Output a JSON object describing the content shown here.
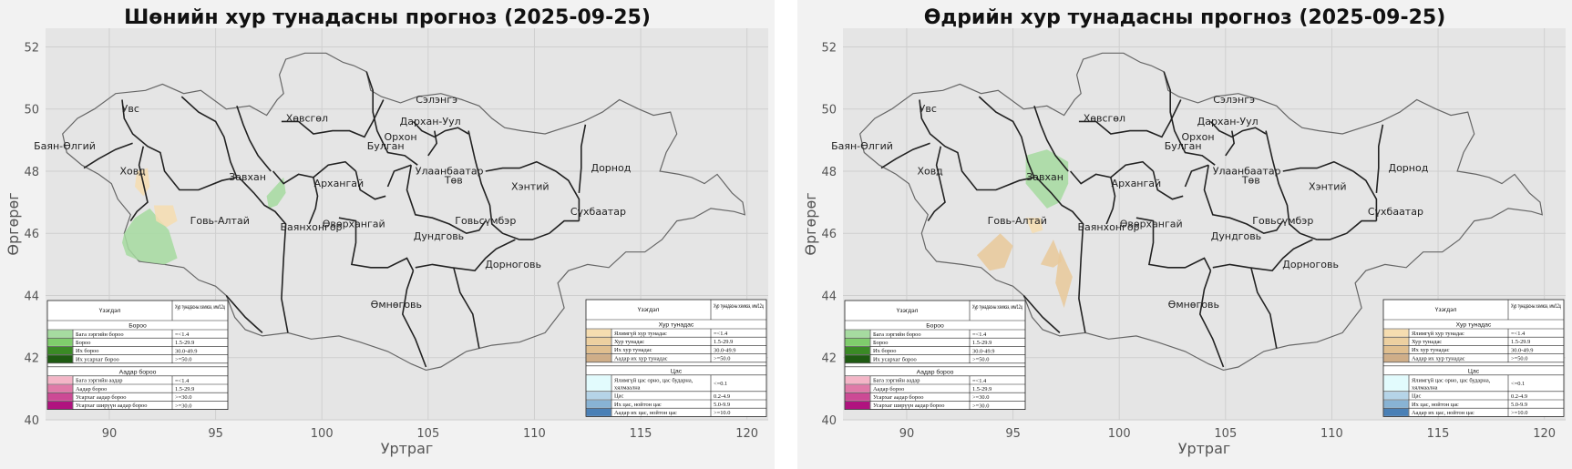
{
  "x_axis": {
    "label": "Уртраг",
    "ticks": [
      90,
      95,
      100,
      105,
      110,
      115,
      120
    ],
    "range": [
      87,
      121
    ]
  },
  "y_axis": {
    "label": "Өргөрөг",
    "ticks": [
      40,
      42,
      44,
      46,
      48,
      50,
      52
    ],
    "range": [
      40,
      52.6
    ]
  },
  "panels": [
    {
      "id": "night",
      "title": "Шөнийн хур тунадасны прогноз (2025-09-25)"
    },
    {
      "id": "day",
      "title": "Өдрийн хур тунадасны прогноз (2025-09-25)"
    }
  ],
  "places": [
    {
      "name": "Увс",
      "lon": 91.0,
      "lat": 49.9
    },
    {
      "name": "Баян-Өлгий",
      "lon": 87.9,
      "lat": 48.7
    },
    {
      "name": "Ховд",
      "lon": 91.1,
      "lat": 47.9
    },
    {
      "name": "Завхан",
      "lon": 96.5,
      "lat": 47.7
    },
    {
      "name": "Говь-Алтай",
      "lon": 95.2,
      "lat": 46.3
    },
    {
      "name": "Хөвсгөл",
      "lon": 99.3,
      "lat": 49.6
    },
    {
      "name": "Архангай",
      "lon": 100.8,
      "lat": 47.5
    },
    {
      "name": "Булган",
      "lon": 103.0,
      "lat": 48.7
    },
    {
      "name": "Орхон",
      "lon": 103.7,
      "lat": 49.0
    },
    {
      "name": "Сэлэнгэ",
      "lon": 105.4,
      "lat": 50.2
    },
    {
      "name": "Дархан-Уул",
      "lon": 105.1,
      "lat": 49.5
    },
    {
      "name": "Улаанбаатар",
      "lon": 106.0,
      "lat": 47.9
    },
    {
      "name": "Төв",
      "lon": 106.2,
      "lat": 47.6
    },
    {
      "name": "Хэнтий",
      "lon": 109.8,
      "lat": 47.4
    },
    {
      "name": "Дорнод",
      "lon": 113.6,
      "lat": 48.0
    },
    {
      "name": "Сүхбаатар",
      "lon": 113.0,
      "lat": 46.6
    },
    {
      "name": "Баянхонгор",
      "lon": 99.5,
      "lat": 46.1
    },
    {
      "name": "Өвөрхангай",
      "lon": 101.5,
      "lat": 46.2
    },
    {
      "name": "Говьсүмбэр",
      "lon": 107.7,
      "lat": 46.3
    },
    {
      "name": "Дундговь",
      "lon": 105.5,
      "lat": 45.8
    },
    {
      "name": "Дорноговь",
      "lon": 109.0,
      "lat": 44.9
    },
    {
      "name": "Өмнөговь",
      "lon": 103.5,
      "lat": 43.6
    }
  ],
  "legend": {
    "col_header_left": "Үзэгдэл",
    "col_header_right": "Хур тунадасны хэмжээ, мм/12ц",
    "rain": {
      "section_title": "Бороо",
      "items": [
        {
          "color": "#a6dba0",
          "label": "Бага зэргийн бороо",
          "range": "=<1.4"
        },
        {
          "color": "#7fcd6c",
          "label": "Бороо",
          "range": "1.5-29.9"
        },
        {
          "color": "#3a8a25",
          "label": "Их бороо",
          "range": "30.0-49.9"
        },
        {
          "color": "#1e5a12",
          "label": "Их усархаг бороо",
          "range": ">=50.0"
        }
      ]
    },
    "sleet": {
      "section_title": "Аадар бороо",
      "items": [
        {
          "color": "#f4b5c7",
          "label": "Бага зэргийн аадар",
          "range": "=<1.4"
        },
        {
          "color": "#e07aa8",
          "label": "Аадар бороо",
          "range": "1.5-29.9"
        },
        {
          "color": "#cc4a95",
          "label": "Усархаг аадар бороо",
          "range": ">=30.0"
        },
        {
          "color": "#b0137f",
          "label": "Усархаг ширүүн аадар бороо",
          "range": ">=30.0"
        }
      ]
    },
    "precip": {
      "section_title": "Хур тунадас",
      "items": [
        {
          "color": "#f6ddb0",
          "label": "Ялимгүй хур тунадас",
          "range": "=<1.4"
        },
        {
          "color": "#edd0a0",
          "label": "Хур тунадас",
          "range": "1.5-29.9"
        },
        {
          "color": "#e0bf8f",
          "label": "Их хур тунадас",
          "range": "30.0-49.9"
        },
        {
          "color": "#cfae88",
          "label": "Аадар их хур тунадас",
          "range": ">=50.0"
        }
      ]
    },
    "snow": {
      "section_title": "Цас",
      "items": [
        {
          "color": "#e2fbfd",
          "label": "Ялимгүй цас орно, цас бударна, хялмаална",
          "range": "<=0.1"
        },
        {
          "color": "#b5d4e8",
          "label": "Цас",
          "range": "0.2-4.9"
        },
        {
          "color": "#88b3d4",
          "label": "Их цас, нойтон цас",
          "range": "5.0-9.9"
        },
        {
          "color": "#4a80b6",
          "label": "Аадар их цас, нойтон цас",
          "range": ">=10.0"
        }
      ]
    }
  },
  "colors": {
    "rain_light": "#a6dba0",
    "precip_light": "#f6ddb0",
    "precip_mid": "#e9c99a"
  }
}
